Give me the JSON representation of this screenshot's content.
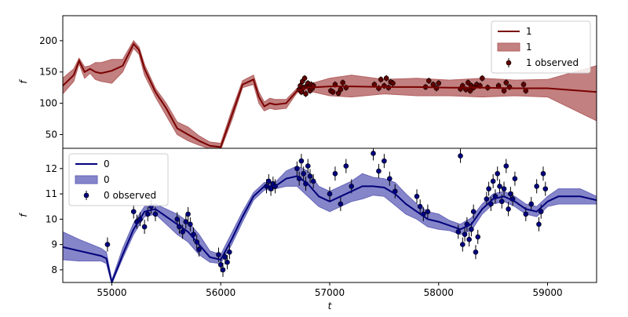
{
  "chart_data": [
    {
      "type": "line",
      "panel": "top",
      "xlabel": "",
      "ylabel": "f",
      "xlim": [
        54550,
        59450
      ],
      "ylim": [
        28,
        240
      ],
      "y_ticks": [
        50,
        100,
        150,
        200
      ],
      "colors": {
        "line": "#7a0000",
        "band": "#b36060",
        "marker": "#600000"
      },
      "legend": {
        "position": "top-right",
        "entries": [
          "1",
          "1",
          "1 observed"
        ]
      },
      "series": [
        {
          "name": "1",
          "kind": "mean",
          "x": [
            54550,
            54650,
            54700,
            54750,
            54800,
            54850,
            54900,
            55000,
            55100,
            55200,
            55250,
            55300,
            55400,
            55500,
            55600,
            55700,
            55800,
            55900,
            56000,
            56100,
            56200,
            56300,
            56350,
            56400,
            56450,
            56500,
            56600,
            56700,
            56800,
            57000,
            57200,
            57500,
            57800,
            58100,
            58400,
            58700,
            59000,
            59450
          ],
          "y": [
            128,
            145,
            168,
            150,
            155,
            150,
            148,
            152,
            160,
            195,
            185,
            155,
            118,
            92,
            60,
            50,
            40,
            32,
            30,
            80,
            130,
            138,
            110,
            95,
            100,
            98,
            100,
            120,
            125,
            127,
            127,
            126,
            126,
            125,
            125,
            124,
            124,
            118
          ]
        }
      ],
      "band": {
        "name": "1",
        "x": [
          54550,
          54650,
          54700,
          54750,
          54800,
          54850,
          54900,
          55000,
          55100,
          55200,
          55250,
          55300,
          55400,
          55500,
          55600,
          55700,
          55800,
          55900,
          56000,
          56100,
          56200,
          56300,
          56350,
          56400,
          56450,
          56500,
          56600,
          56700,
          56800,
          57000,
          57200,
          57500,
          57800,
          58100,
          58400,
          58700,
          59000,
          59450
        ],
        "lower": [
          115,
          135,
          163,
          140,
          148,
          138,
          135,
          132,
          150,
          188,
          178,
          145,
          110,
          80,
          50,
          40,
          33,
          27,
          26,
          72,
          125,
          130,
          100,
          88,
          92,
          90,
          92,
          117,
          120,
          112,
          110,
          115,
          112,
          112,
          110,
          112,
          110,
          72
        ],
        "upper": [
          140,
          155,
          172,
          158,
          160,
          165,
          165,
          170,
          170,
          200,
          190,
          162,
          124,
          100,
          70,
          62,
          48,
          38,
          36,
          88,
          136,
          145,
          118,
          102,
          108,
          106,
          106,
          124,
          130,
          140,
          145,
          138,
          140,
          137,
          140,
          137,
          138,
          160
        ]
      },
      "observed": {
        "name": "1 observed",
        "x": [
          56720,
          56730,
          56740,
          56750,
          56760,
          56770,
          56780,
          56790,
          56800,
          56810,
          56820,
          56830,
          56840,
          56850,
          57010,
          57030,
          57050,
          57080,
          57100,
          57120,
          57150,
          57410,
          57450,
          57470,
          57500,
          57520,
          57540,
          57560,
          57580,
          57880,
          57910,
          57950,
          57980,
          58000,
          58200,
          58220,
          58250,
          58270,
          58290,
          58300,
          58320,
          58350,
          58380,
          58400,
          58450,
          58550,
          58600,
          58620,
          58650,
          58780,
          58800
        ],
        "y": [
          122,
          128,
          118,
          135,
          125,
          140,
          115,
          128,
          132,
          126,
          120,
          130,
          124,
          128,
          120,
          118,
          130,
          116,
          122,
          133,
          125,
          130,
          124,
          138,
          128,
          140,
          125,
          134,
          132,
          126,
          136,
          130,
          124,
          132,
          123,
          128,
          122,
          133,
          120,
          128,
          125,
          130,
          128,
          140,
          125,
          128,
          120,
          133,
          126,
          130,
          120
        ]
      }
    },
    {
      "type": "line",
      "panel": "bottom",
      "xlabel": "t",
      "ylabel": "f",
      "xlim": [
        54550,
        59450
      ],
      "ylim": [
        7.5,
        12.8
      ],
      "x_ticks": [
        55000,
        56000,
        57000,
        58000,
        59000
      ],
      "y_ticks": [
        8,
        9,
        10,
        11,
        12
      ],
      "colors": {
        "line": "#00007a",
        "band": "#6666bb",
        "marker": "#000080"
      },
      "legend": {
        "position": "top-left",
        "entries": [
          "0",
          "0",
          "0 observed"
        ]
      },
      "series": [
        {
          "name": "0",
          "kind": "mean",
          "x": [
            54550,
            54700,
            54900,
            54950,
            55000,
            55100,
            55200,
            55300,
            55400,
            55500,
            55600,
            55700,
            55800,
            55900,
            56000,
            56100,
            56200,
            56300,
            56400,
            56500,
            56600,
            56700,
            56800,
            56900,
            57000,
            57100,
            57200,
            57300,
            57400,
            57500,
            57600,
            57700,
            57800,
            57900,
            58000,
            58100,
            58200,
            58300,
            58400,
            58500,
            58600,
            58700,
            58800,
            58900,
            59000,
            59100,
            59200,
            59300,
            59450
          ],
          "y": [
            8.9,
            8.75,
            8.55,
            8.45,
            7.5,
            8.6,
            9.6,
            10.3,
            10.4,
            10.1,
            9.8,
            9.5,
            9.0,
            8.5,
            8.4,
            9.2,
            10.1,
            10.9,
            11.3,
            11.3,
            11.6,
            11.7,
            11.4,
            10.9,
            10.7,
            10.9,
            11.1,
            11.3,
            11.3,
            11.25,
            11.0,
            10.6,
            10.3,
            10.0,
            9.9,
            9.75,
            9.6,
            9.8,
            10.4,
            10.8,
            10.9,
            10.7,
            10.4,
            10.3,
            10.7,
            10.9,
            10.9,
            10.9,
            10.75
          ]
        }
      ],
      "band": {
        "name": "0",
        "x": [
          54550,
          54700,
          54900,
          54950,
          55000,
          55100,
          55200,
          55300,
          55400,
          55500,
          55600,
          55700,
          55800,
          55900,
          56000,
          56100,
          56200,
          56300,
          56400,
          56500,
          56600,
          56700,
          56800,
          56900,
          57000,
          57100,
          57200,
          57300,
          57400,
          57500,
          57600,
          57700,
          57800,
          57900,
          58000,
          58100,
          58200,
          58300,
          58400,
          58500,
          58600,
          58700,
          58800,
          58900,
          59000,
          59100,
          59200,
          59300,
          59450
        ],
        "lower": [
          8.4,
          8.35,
          8.35,
          8.25,
          7.45,
          8.45,
          9.4,
          10.1,
          10.2,
          9.8,
          9.4,
          9.1,
          8.6,
          8.3,
          8.25,
          9.0,
          9.9,
          10.75,
          11.15,
          11.2,
          11.3,
          11.3,
          10.9,
          10.5,
          10.3,
          10.5,
          10.7,
          10.8,
          10.95,
          10.9,
          10.55,
          10.2,
          10.0,
          9.7,
          9.6,
          9.55,
          9.4,
          9.55,
          10.2,
          10.6,
          10.7,
          10.5,
          10.2,
          10.1,
          10.5,
          10.6,
          10.6,
          10.6,
          10.6
        ],
        "upper": [
          9.5,
          9.2,
          8.85,
          8.7,
          7.6,
          8.85,
          9.85,
          10.5,
          10.6,
          10.4,
          10.2,
          9.9,
          9.4,
          8.75,
          8.6,
          9.45,
          10.3,
          11.05,
          11.45,
          11.45,
          11.9,
          12.1,
          11.9,
          11.3,
          11.1,
          11.3,
          11.5,
          11.8,
          11.65,
          11.6,
          11.45,
          11.0,
          10.6,
          10.3,
          10.2,
          9.95,
          9.8,
          10.05,
          10.6,
          11.0,
          11.1,
          10.9,
          10.6,
          10.5,
          10.9,
          11.2,
          11.2,
          11.2,
          10.9
        ]
      },
      "observed": {
        "name": "0 observed",
        "x": [
          54960,
          55200,
          55230,
          55260,
          55300,
          55330,
          55360,
          55400,
          55600,
          55620,
          55650,
          55680,
          55700,
          55720,
          55750,
          55780,
          55800,
          55980,
          56000,
          56020,
          56040,
          56060,
          56080,
          56420,
          56440,
          56460,
          56480,
          56500,
          56700,
          56720,
          56740,
          56760,
          56780,
          56800,
          56820,
          56850,
          57000,
          57050,
          57100,
          57150,
          57200,
          57400,
          57450,
          57500,
          57550,
          57600,
          57800,
          57830,
          57860,
          57900,
          58180,
          58200,
          58220,
          58240,
          58260,
          58280,
          58300,
          58320,
          58340,
          58360,
          58440,
          58460,
          58480,
          58500,
          58520,
          58540,
          58560,
          58580,
          58600,
          58620,
          58640,
          58660,
          58680,
          58700,
          58800,
          58850,
          58900,
          58920,
          58940,
          58960,
          58980
        ],
        "y": [
          9.0,
          10.3,
          9.9,
          10.0,
          9.7,
          10.2,
          10.5,
          10.2,
          10.0,
          9.7,
          9.5,
          9.9,
          10.2,
          9.8,
          9.4,
          9.1,
          8.8,
          8.6,
          8.2,
          8.0,
          8.5,
          8.3,
          8.7,
          11.3,
          11.5,
          11.2,
          11.4,
          11.3,
          12.0,
          11.6,
          12.3,
          11.8,
          11.4,
          12.1,
          11.7,
          11.5,
          11.0,
          11.8,
          10.6,
          12.1,
          11.3,
          12.6,
          11.9,
          12.3,
          11.6,
          11.1,
          10.9,
          10.5,
          10.2,
          10.3,
          9.5,
          12.5,
          9.0,
          9.4,
          9.8,
          9.2,
          9.6,
          10.3,
          8.7,
          9.3,
          10.8,
          11.2,
          10.6,
          11.5,
          10.9,
          11.8,
          11.3,
          10.7,
          11.2,
          12.1,
          10.4,
          11.0,
          10.8,
          11.6,
          10.2,
          10.6,
          11.3,
          9.8,
          10.3,
          11.8,
          11.2
        ]
      }
    }
  ]
}
